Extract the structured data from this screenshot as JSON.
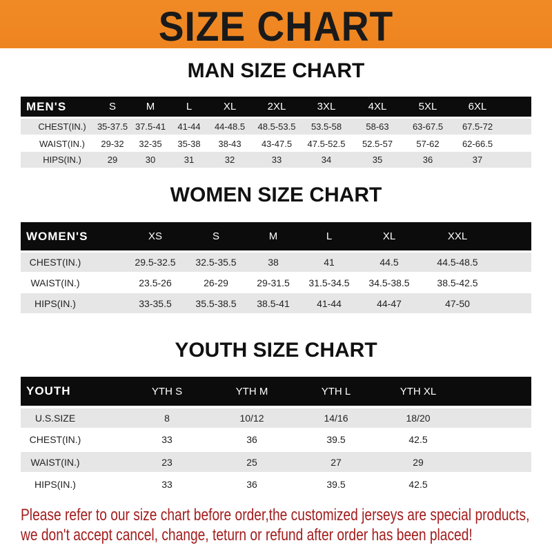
{
  "title": "SIZE CHART",
  "colors": {
    "banner": "#f08a24",
    "header": "#0c0c0c",
    "stripe": "#e6e6e6",
    "note": "#a31d1d"
  },
  "tables": [
    {
      "title": "MAN SIZE CHART",
      "columns": [
        "MEN'S",
        "S",
        "M",
        "L",
        "XL",
        "2XL",
        "3XL",
        "4XL",
        "5XL",
        "6XL"
      ],
      "rows": [
        [
          "CHEST(IN.)",
          "35-37.5",
          "37.5-41",
          "41-44",
          "44-48.5",
          "48.5-53.5",
          "53.5-58",
          "58-63",
          "63-67.5",
          "67.5-72"
        ],
        [
          "WAIST(IN.)",
          "29-32",
          "32-35",
          "35-38",
          "38-43",
          "43-47.5",
          "47.5-52.5",
          "52.5-57",
          "57-62",
          "62-66.5"
        ],
        [
          "HIPS(IN.)",
          "29",
          "30",
          "31",
          "32",
          "33",
          "34",
          "35",
          "36",
          "37"
        ]
      ]
    },
    {
      "title": "WOMEN SIZE CHART",
      "columns": [
        "WOMEN'S",
        "XS",
        "S",
        "M",
        "L",
        "XL",
        "XXL"
      ],
      "rows": [
        [
          "CHEST(IN.)",
          "29.5-32.5",
          "32.5-35.5",
          "38",
          "41",
          "44.5",
          "44.5-48.5"
        ],
        [
          "WAIST(IN.)",
          "23.5-26",
          "26-29",
          "29-31.5",
          "31.5-34.5",
          "34.5-38.5",
          "38.5-42.5"
        ],
        [
          "HIPS(IN.)",
          "33-35.5",
          "35.5-38.5",
          "38.5-41",
          "41-44",
          "44-47",
          "47-50"
        ]
      ]
    },
    {
      "title": "YOUTH SIZE CHART",
      "columns": [
        "YOUTH",
        "YTH S",
        "YTH M",
        "YTH L",
        "YTH XL"
      ],
      "rows": [
        [
          "U.S.SIZE",
          "8",
          "10/12",
          "14/16",
          "18/20"
        ],
        [
          "CHEST(IN.)",
          "33",
          "36",
          "39.5",
          "42.5"
        ],
        [
          "WAIST(IN.)",
          "23",
          "25",
          "27",
          "29"
        ],
        [
          "HIPS(IN.)",
          "33",
          "36",
          "39.5",
          "42.5"
        ]
      ]
    }
  ],
  "notice": [
    "Please refer to our size chart before order,the customized jerseys are special products,",
    "we don't accept cancel, change, teturn or refund after order has been placed!"
  ]
}
